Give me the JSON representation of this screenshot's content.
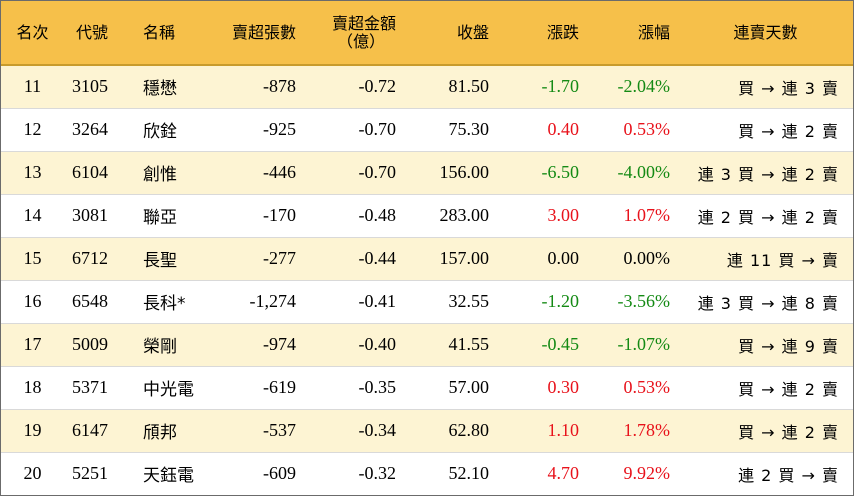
{
  "headers": {
    "rank": "名次",
    "code": "代號",
    "name": "名稱",
    "net_sell_lots": "賣超張數",
    "net_sell_amount_line1": "賣超金額",
    "net_sell_amount_line2": "（億）",
    "close": "收盤",
    "change": "漲跌",
    "change_pct": "漲幅",
    "streak": "連賣天數"
  },
  "rows": [
    {
      "rank": "11",
      "code": "3105",
      "name": "穩懋",
      "lots": "-878",
      "amount": "-0.72",
      "close": "81.50",
      "change": "-1.70",
      "pct": "-2.04%",
      "dir": "down",
      "streak": "買 → 連 3 賣"
    },
    {
      "rank": "12",
      "code": "3264",
      "name": "欣銓",
      "lots": "-925",
      "amount": "-0.70",
      "close": "75.30",
      "change": "0.40",
      "pct": "0.53%",
      "dir": "up",
      "streak": "買 → 連 2 賣"
    },
    {
      "rank": "13",
      "code": "6104",
      "name": "創惟",
      "lots": "-446",
      "amount": "-0.70",
      "close": "156.00",
      "change": "-6.50",
      "pct": "-4.00%",
      "dir": "down",
      "streak": "連 3 買 → 連 2 賣"
    },
    {
      "rank": "14",
      "code": "3081",
      "name": "聯亞",
      "lots": "-170",
      "amount": "-0.48",
      "close": "283.00",
      "change": "3.00",
      "pct": "1.07%",
      "dir": "up",
      "streak": "連 2 買 → 連 2 賣"
    },
    {
      "rank": "15",
      "code": "6712",
      "name": "長聖",
      "lots": "-277",
      "amount": "-0.44",
      "close": "157.00",
      "change": "0.00",
      "pct": "0.00%",
      "dir": "flat",
      "streak": "連 11 買 → 賣"
    },
    {
      "rank": "16",
      "code": "6548",
      "name": "長科*",
      "lots": "-1,274",
      "amount": "-0.41",
      "close": "32.55",
      "change": "-1.20",
      "pct": "-3.56%",
      "dir": "down",
      "streak": "連 3 買 → 連 8 賣"
    },
    {
      "rank": "17",
      "code": "5009",
      "name": "榮剛",
      "lots": "-974",
      "amount": "-0.40",
      "close": "41.55",
      "change": "-0.45",
      "pct": "-1.07%",
      "dir": "down",
      "streak": "買 → 連 9 賣"
    },
    {
      "rank": "18",
      "code": "5371",
      "name": "中光電",
      "lots": "-619",
      "amount": "-0.35",
      "close": "57.00",
      "change": "0.30",
      "pct": "0.53%",
      "dir": "up",
      "streak": "買 → 連 2 賣"
    },
    {
      "rank": "19",
      "code": "6147",
      "name": "頎邦",
      "lots": "-537",
      "amount": "-0.34",
      "close": "62.80",
      "change": "1.10",
      "pct": "1.78%",
      "dir": "up",
      "streak": "買 → 連 2 賣"
    },
    {
      "rank": "20",
      "code": "5251",
      "name": "天鈺電",
      "lots": "-609",
      "amount": "-0.32",
      "close": "52.10",
      "change": "4.70",
      "pct": "9.92%",
      "dir": "up",
      "streak": "連 2 買 → 賣"
    }
  ],
  "colors": {
    "header_bg": "#f6c04a",
    "shaded_row_bg": "#fdf4d3",
    "up": "#e8121b",
    "down": "#148a14"
  }
}
